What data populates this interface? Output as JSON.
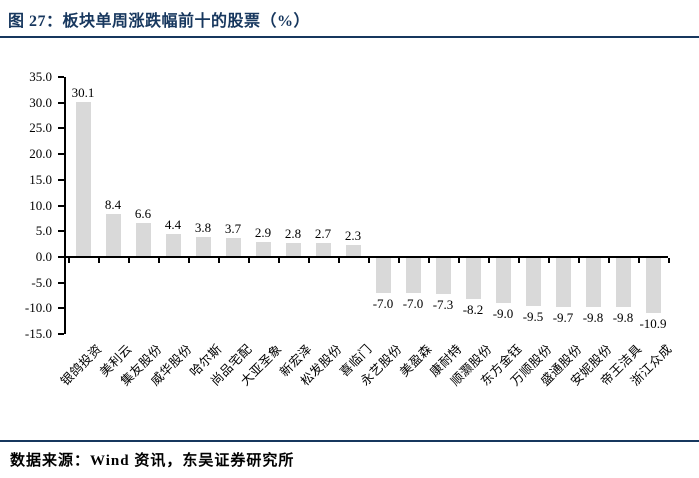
{
  "header": {
    "figure_label": "图 27：",
    "title": "图 27：板块单周涨跌幅前十的股票（%）"
  },
  "footer": {
    "source": "数据来源：Wind 资讯，东吴证券研究所"
  },
  "colors": {
    "title": "#17375E",
    "rule": "#17375E",
    "bar": "#D9D9D9",
    "axis": "#000000",
    "label": "#000000",
    "background": "#FFFFFF"
  },
  "chart_data": {
    "type": "bar",
    "title": "板块单周涨跌幅前十的股票（%）",
    "xlabel": "",
    "ylabel": "",
    "categories": [
      "银鸽投资",
      "美利云",
      "集友股份",
      "威华股份",
      "哈尔斯",
      "尚品宅配",
      "大亚圣象",
      "新宏泽",
      "松发股份",
      "喜临门",
      "永艺股份",
      "美盈森",
      "康耐特",
      "顺灏股份",
      "东方金钰",
      "万顺股份",
      "盛通股份",
      "安妮股份",
      "帝王洁具",
      "浙江众成"
    ],
    "values": [
      30.1,
      8.4,
      6.6,
      4.4,
      3.8,
      3.7,
      2.9,
      2.8,
      2.7,
      2.3,
      -7.0,
      -7.0,
      -7.3,
      -8.2,
      -9.0,
      -9.5,
      -9.7,
      -9.8,
      -9.8,
      -10.9
    ],
    "value_labels": [
      "30.1",
      "8.4",
      "6.6",
      "4.4",
      "3.8",
      "3.7",
      "2.9",
      "2.8",
      "2.7",
      "2.3",
      "-7.0",
      "-7.0",
      "-7.3",
      "-8.2",
      "-9.0",
      "-9.5",
      "-9.7",
      "-9.8",
      "-9.8",
      "-10.9"
    ],
    "ylim": [
      -15.0,
      35.0
    ],
    "ytick_step": 5.0,
    "ytick_labels": [
      "35.0",
      "30.0",
      "25.0",
      "20.0",
      "15.0",
      "10.0",
      "5.0",
      "0.0",
      "-5.0",
      "-10.0",
      "-15.0"
    ],
    "grid": false,
    "legend": null,
    "bar_color": "#D9D9D9",
    "category_label_rotation_deg": -45
  }
}
